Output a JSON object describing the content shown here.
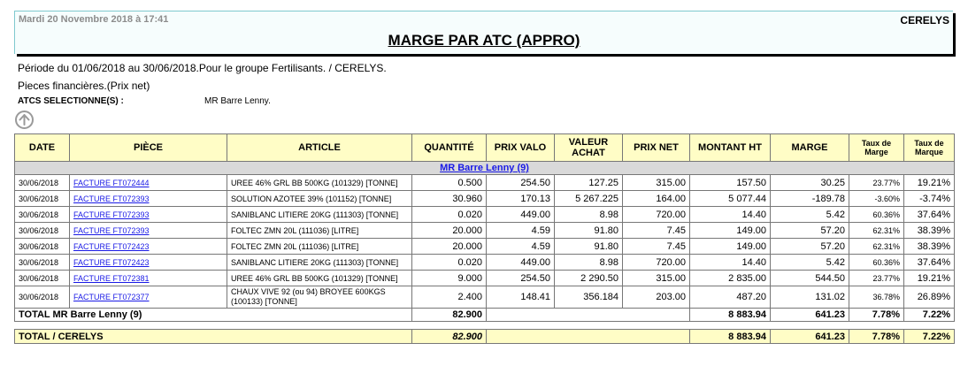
{
  "header": {
    "date": "Mardi 20 Novembre 2018 à 17:41",
    "company": "CERELYS",
    "title": "MARGE PAR ATC (APPRO)"
  },
  "info": {
    "period": "Période du 01/06/2018 au 30/06/2018.Pour le groupe  Fertilisants. / CERELYS.",
    "pieces": "Pieces financières.(Prix net)",
    "selection_label": "ATCS SELECTIONNE(S) :",
    "selection_value": "MR Barre Lenny."
  },
  "columns": {
    "date": "DATE",
    "piece": "PIÈCE",
    "article": "ARTICLE",
    "quantite": "QUANTITÉ",
    "prix_valo": "PRIX VALO",
    "valeur_achat_1": "VALEUR",
    "valeur_achat_2": "ACHAT",
    "prix_net": "PRIX NET",
    "montant_ht": "MONTANT HT",
    "marge": "MARGE",
    "taux_marge_1": "Taux de",
    "taux_marge_2": "Marge",
    "taux_marque_1": "Taux de",
    "taux_marque_2": "Marque"
  },
  "group": {
    "label": "MR Barre Lenny (9)"
  },
  "rows": [
    {
      "date": "30/06/2018",
      "piece": "FACTURE FT072444",
      "article": "UREE 46% GRL BB 500KG (101329) [TONNE]",
      "quantite": "0.500",
      "prix_valo": "254.50",
      "valeur_achat": "127.25",
      "prix_net": "315.00",
      "montant_ht": "157.50",
      "marge": "30.25",
      "taux_marge": "23.77%",
      "taux_marque": "19.21%"
    },
    {
      "date": "30/06/2018",
      "piece": "FACTURE FT072393",
      "article": "SOLUTION AZOTEE 39% (101152) [TONNE]",
      "quantite": "30.960",
      "prix_valo": "170.13",
      "valeur_achat": "5 267.225",
      "prix_net": "164.00",
      "montant_ht": "5 077.44",
      "marge": "-189.78",
      "taux_marge": "-3.60%",
      "taux_marque": "-3.74%"
    },
    {
      "date": "30/06/2018",
      "piece": "FACTURE FT072393",
      "article": "SANIBLANC LITIERE 20KG (111303) [TONNE]",
      "quantite": "0.020",
      "prix_valo": "449.00",
      "valeur_achat": "8.98",
      "prix_net": "720.00",
      "montant_ht": "14.40",
      "marge": "5.42",
      "taux_marge": "60.36%",
      "taux_marque": "37.64%"
    },
    {
      "date": "30/06/2018",
      "piece": "FACTURE FT072393",
      "article": "FOLTEC ZMN 20L (111036) [LITRE]",
      "quantite": "20.000",
      "prix_valo": "4.59",
      "valeur_achat": "91.80",
      "prix_net": "7.45",
      "montant_ht": "149.00",
      "marge": "57.20",
      "taux_marge": "62.31%",
      "taux_marque": "38.39%"
    },
    {
      "date": "30/06/2018",
      "piece": "FACTURE FT072423",
      "article": "FOLTEC ZMN 20L (111036) [LITRE]",
      "quantite": "20.000",
      "prix_valo": "4.59",
      "valeur_achat": "91.80",
      "prix_net": "7.45",
      "montant_ht": "149.00",
      "marge": "57.20",
      "taux_marge": "62.31%",
      "taux_marque": "38.39%"
    },
    {
      "date": "30/06/2018",
      "piece": "FACTURE FT072423",
      "article": "SANIBLANC LITIERE 20KG (111303) [TONNE]",
      "quantite": "0.020",
      "prix_valo": "449.00",
      "valeur_achat": "8.98",
      "prix_net": "720.00",
      "montant_ht": "14.40",
      "marge": "5.42",
      "taux_marge": "60.36%",
      "taux_marque": "37.64%"
    },
    {
      "date": "30/06/2018",
      "piece": "FACTURE FT072381",
      "article": "UREE 46% GRL BB 500KG (101329) [TONNE]",
      "quantite": "9.000",
      "prix_valo": "254.50",
      "valeur_achat": "2 290.50",
      "prix_net": "315.00",
      "montant_ht": "2 835.00",
      "marge": "544.50",
      "taux_marge": "23.77%",
      "taux_marque": "19.21%"
    },
    {
      "date": "30/06/2018",
      "piece": "FACTURE FT072377",
      "article": "CHAUX VIVE 92 (ou 94) BROYEE 600KGS (100133) [TONNE]",
      "quantite": "2.400",
      "prix_valo": "148.41",
      "valeur_achat": "356.184",
      "prix_net": "203.00",
      "montant_ht": "487.20",
      "marge": "131.02",
      "taux_marge": "36.78%",
      "taux_marque": "26.89%"
    }
  ],
  "total_group": {
    "label": "TOTAL MR Barre Lenny (9)",
    "quantite": "82.900",
    "montant_ht": "8 883.94",
    "marge": "641.23",
    "taux_marge": "7.78%",
    "taux_marque": "7.22%"
  },
  "total_cerelys": {
    "label": "TOTAL / CERELYS",
    "quantite": "82.900",
    "montant_ht": "8 883.94",
    "marge": "641.23",
    "taux_marge": "7.78%",
    "taux_marque": "7.22%"
  }
}
